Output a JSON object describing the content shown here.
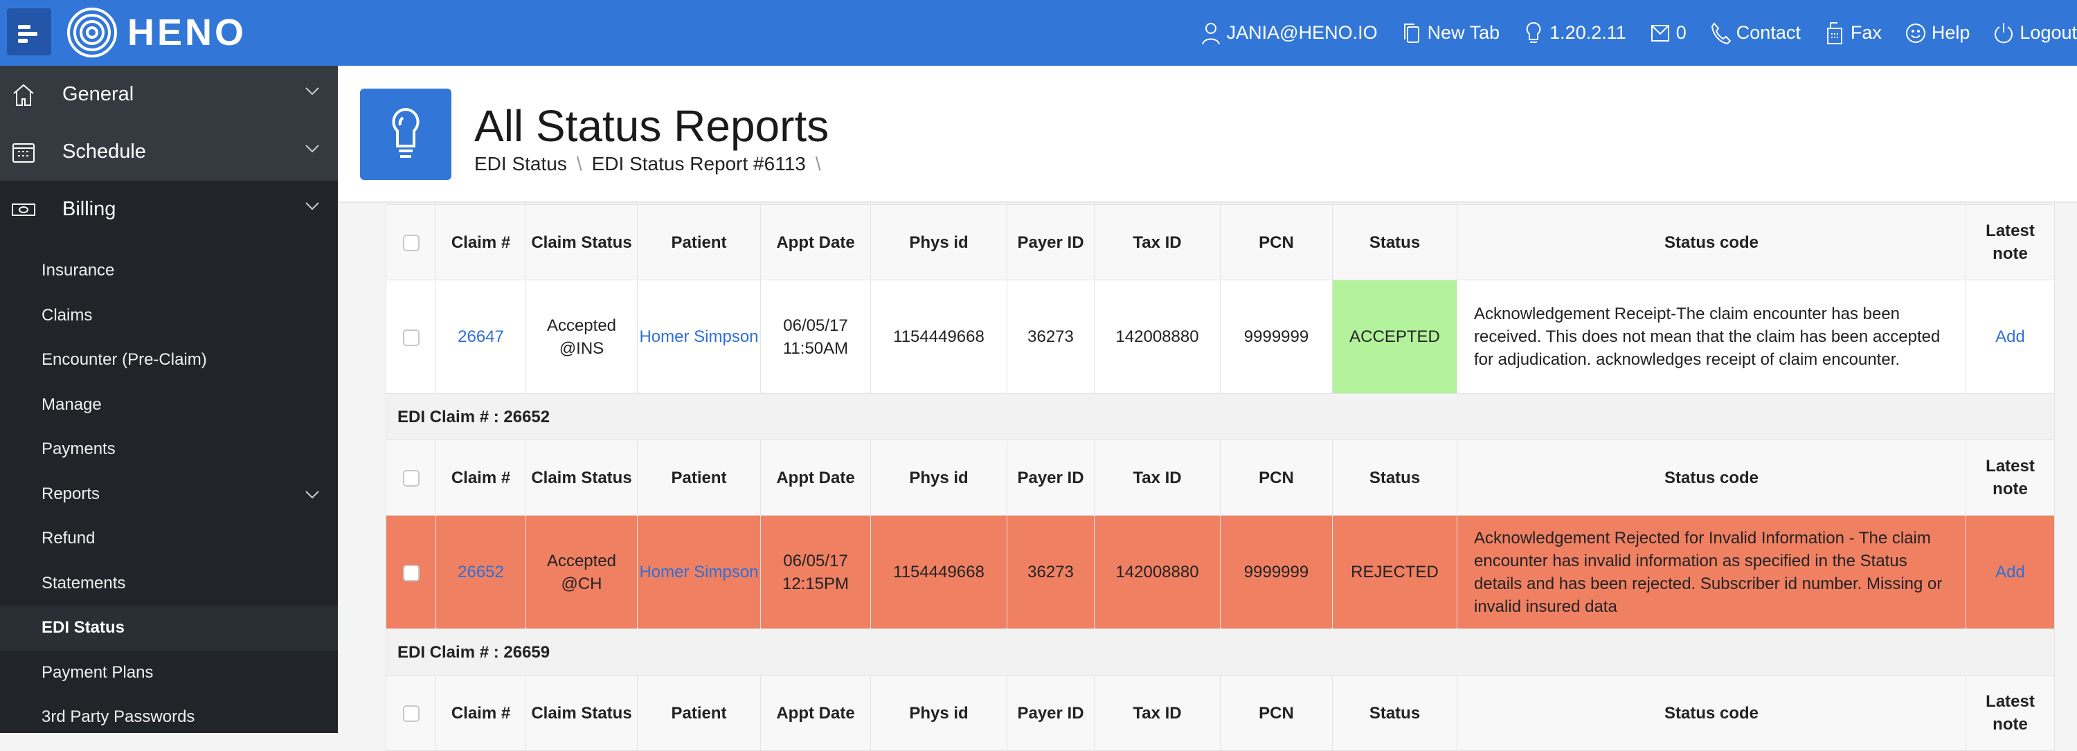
{
  "header": {
    "logo_text": "HENO",
    "nav": [
      {
        "icon": "user-icon",
        "label": "JANIA@HENO.IO"
      },
      {
        "icon": "new-tab-icon",
        "label": "New Tab"
      },
      {
        "icon": "lightbulb-icon",
        "label": "1.20.2.11"
      },
      {
        "icon": "mail-icon",
        "label": "0"
      },
      {
        "icon": "phone-icon",
        "label": "Contact"
      },
      {
        "icon": "fax-icon",
        "label": "Fax"
      },
      {
        "icon": "smile-icon",
        "label": "Help"
      },
      {
        "icon": "power-icon",
        "label": "Logout"
      }
    ]
  },
  "sidebar": {
    "sections": [
      {
        "icon": "home-icon",
        "label": "General"
      },
      {
        "icon": "calendar-icon",
        "label": "Schedule"
      },
      {
        "icon": "money-icon",
        "label": "Billing"
      }
    ],
    "billing_items": [
      "Insurance",
      "Claims",
      "Encounter (Pre-Claim)",
      "Manage",
      "Payments",
      "Reports",
      "Refund",
      "Statements",
      "EDI Status",
      "Payment Plans",
      "3rd Party Passwords"
    ],
    "active": "EDI Status"
  },
  "page": {
    "title": "All Status Reports",
    "breadcrumb": [
      "EDI Status",
      "EDI Status Report #6113"
    ]
  },
  "table": {
    "columns": [
      "Claim #",
      "Claim Status",
      "Patient",
      "Appt Date",
      "Phys id",
      "Payer ID",
      "Tax ID",
      "PCN",
      "Status",
      "Status code",
      "Latest note"
    ],
    "colors": {
      "accepted": "#b2f29a",
      "rejected": "#ef8062"
    },
    "groups": [
      {
        "label": "",
        "rows": [
          {
            "claim": "26647",
            "claim_status": "Accepted @INS",
            "patient": "Homer Simpson",
            "appt_date": "06/05/17 11:50AM",
            "phys_id": "1154449668",
            "payer_id": "36273",
            "tax_id": "142008880",
            "pcn": "9999999",
            "status": "ACCEPTED",
            "status_code": "Acknowledgement Receipt-The claim encounter has been received. This does not mean that the claim has been accepted for adjudication. acknowledges receipt of claim encounter.",
            "note": "Add"
          }
        ]
      },
      {
        "label": "EDI Claim # : 26652",
        "rows": [
          {
            "claim": "26652",
            "claim_status": "Accepted @CH",
            "patient": "Homer Simpson",
            "appt_date": "06/05/17 12:15PM",
            "phys_id": "1154449668",
            "payer_id": "36273",
            "tax_id": "142008880",
            "pcn": "9999999",
            "status": "REJECTED",
            "status_code": "Acknowledgement Rejected for Invalid Information - The claim encounter has invalid information as specified in the Status details and has been rejected. Subscriber id number. Missing or invalid insured data",
            "note": "Add"
          }
        ]
      },
      {
        "label": "EDI Claim # : 26659",
        "rows": []
      }
    ]
  }
}
